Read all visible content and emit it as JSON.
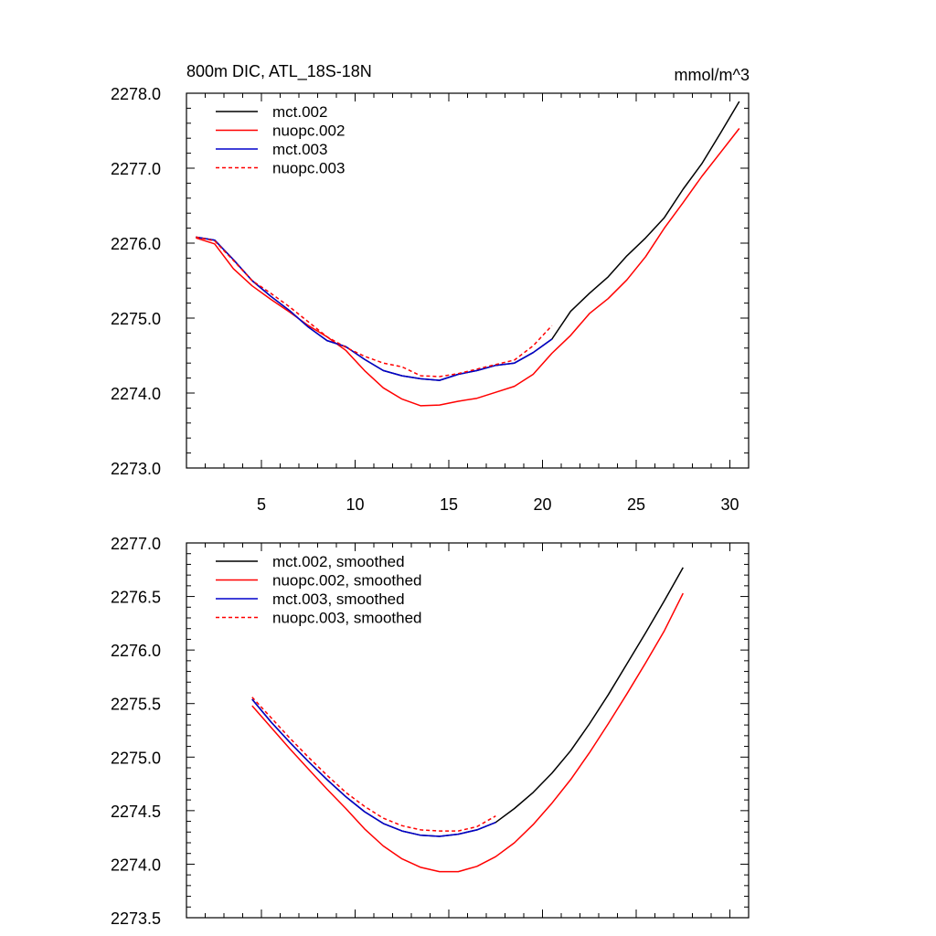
{
  "chart_data": [
    {
      "type": "line",
      "title": "800m DIC, ATL_18S-18N",
      "units": "mmol/m^3",
      "xlim": [
        1,
        31
      ],
      "ylim": [
        2273.0,
        2278.0
      ],
      "xticks": [
        5,
        10,
        15,
        20,
        25,
        30
      ],
      "yticks": [
        2273.0,
        2274.0,
        2275.0,
        2276.0,
        2277.0,
        2278.0
      ],
      "ytick_labels": [
        "2273.0",
        "2274.0",
        "2275.0",
        "2276.0",
        "2277.0",
        "2278.0"
      ],
      "legend_position": "top-left",
      "series": [
        {
          "name": "mct.002",
          "color": "#000000",
          "dash": "solid",
          "x": [
            1.5,
            2.5,
            3.5,
            4.5,
            5.5,
            6.5,
            7.5,
            8.5,
            9.5,
            10.5,
            11.5,
            12.5,
            13.5,
            14.5,
            15.5,
            16.5,
            17.5,
            18.5,
            19.5,
            20.5,
            21.5,
            22.5,
            23.5,
            24.5,
            25.5,
            26.5,
            27.5,
            28.5,
            29.5,
            30.5
          ],
          "y": [
            2276.08,
            2276.04,
            2275.78,
            2275.5,
            2275.29,
            2275.1,
            2274.88,
            2274.7,
            2274.62,
            2274.45,
            2274.3,
            2274.23,
            2274.19,
            2274.17,
            2274.25,
            2274.3,
            2274.37,
            2274.4,
            2274.54,
            2274.72,
            2275.09,
            2275.33,
            2275.55,
            2275.83,
            2276.07,
            2276.34,
            2276.72,
            2277.06,
            2277.47,
            2277.89
          ]
        },
        {
          "name": "nuopc.002",
          "color": "#ff0000",
          "dash": "solid",
          "x": [
            1.5,
            2.5,
            3.5,
            4.5,
            5.5,
            6.5,
            7.5,
            8.5,
            9.5,
            10.5,
            11.5,
            12.5,
            13.5,
            14.5,
            15.5,
            16.5,
            17.5,
            18.5,
            19.5,
            20.5,
            21.5,
            22.5,
            23.5,
            24.5,
            25.5,
            26.5,
            27.5,
            28.5,
            29.5,
            30.5
          ],
          "y": [
            2276.07,
            2275.99,
            2275.66,
            2275.43,
            2275.25,
            2275.08,
            2274.9,
            2274.75,
            2274.57,
            2274.3,
            2274.07,
            2273.92,
            2273.83,
            2273.84,
            2273.89,
            2273.93,
            2274.01,
            2274.09,
            2274.25,
            2274.53,
            2274.77,
            2275.06,
            2275.26,
            2275.51,
            2275.82,
            2276.2,
            2276.54,
            2276.89,
            2277.21,
            2277.53
          ]
        },
        {
          "name": "mct.003",
          "color": "#0000cc",
          "dash": "solid",
          "x": [
            1.5,
            2.5,
            3.5,
            4.5,
            5.5,
            6.5,
            7.5,
            8.5,
            9.5,
            10.5,
            11.5,
            12.5,
            13.5,
            14.5,
            15.5,
            16.5,
            17.5,
            18.5,
            19.5,
            20.5
          ],
          "y": [
            2276.08,
            2276.04,
            2275.78,
            2275.5,
            2275.29,
            2275.1,
            2274.88,
            2274.7,
            2274.62,
            2274.45,
            2274.3,
            2274.23,
            2274.19,
            2274.17,
            2274.25,
            2274.3,
            2274.37,
            2274.4,
            2274.54,
            2274.72
          ]
        },
        {
          "name": "nuopc.003",
          "color": "#ff0000",
          "dash": "dashed",
          "x": [
            1.5,
            2.5,
            3.5,
            4.5,
            5.5,
            6.5,
            7.5,
            8.5,
            9.5,
            10.5,
            11.5,
            12.5,
            13.5,
            14.5,
            15.5,
            16.5,
            17.5,
            18.5,
            19.5,
            20.5
          ],
          "y": [
            2276.08,
            2276.03,
            2275.77,
            2275.5,
            2275.33,
            2275.15,
            2274.95,
            2274.75,
            2274.61,
            2274.49,
            2274.4,
            2274.35,
            2274.23,
            2274.22,
            2274.26,
            2274.32,
            2274.38,
            2274.44,
            2274.63,
            2274.9
          ]
        }
      ]
    },
    {
      "type": "line",
      "xlim": [
        1,
        31
      ],
      "ylim": [
        2273.5,
        2277.0
      ],
      "xticks": [
        5,
        10,
        15,
        20,
        25,
        30
      ],
      "yticks": [
        2273.5,
        2274.0,
        2274.5,
        2275.0,
        2275.5,
        2276.0,
        2276.5,
        2277.0
      ],
      "ytick_labels": [
        "2273.5",
        "2274.0",
        "2274.5",
        "2275.0",
        "2275.5",
        "2276.0",
        "2276.5",
        "2277.0"
      ],
      "legend_position": "top-left",
      "series": [
        {
          "name": "mct.002, smoothed",
          "color": "#000000",
          "dash": "solid",
          "x": [
            4.5,
            5.5,
            6.5,
            7.5,
            8.5,
            9.5,
            10.5,
            11.5,
            12.5,
            13.5,
            14.5,
            15.5,
            16.5,
            17.5,
            18.5,
            19.5,
            20.5,
            21.5,
            22.5,
            23.5,
            24.5,
            25.5,
            26.5,
            27.5
          ],
          "y": [
            2275.54,
            2275.33,
            2275.14,
            2274.96,
            2274.79,
            2274.63,
            2274.49,
            2274.38,
            2274.31,
            2274.27,
            2274.26,
            2274.28,
            2274.32,
            2274.39,
            2274.52,
            2274.67,
            2274.85,
            2275.06,
            2275.31,
            2275.58,
            2275.87,
            2276.16,
            2276.46,
            2276.77
          ]
        },
        {
          "name": "nuopc.002, smoothed",
          "color": "#ff0000",
          "dash": "solid",
          "x": [
            4.5,
            5.5,
            6.5,
            7.5,
            8.5,
            9.5,
            10.5,
            11.5,
            12.5,
            13.5,
            14.5,
            15.5,
            16.5,
            17.5,
            18.5,
            19.5,
            20.5,
            21.5,
            22.5,
            23.5,
            24.5,
            25.5,
            26.5,
            27.5
          ],
          "y": [
            2275.48,
            2275.28,
            2275.08,
            2274.89,
            2274.7,
            2274.52,
            2274.33,
            2274.17,
            2274.05,
            2273.97,
            2273.93,
            2273.93,
            2273.98,
            2274.07,
            2274.2,
            2274.37,
            2274.57,
            2274.79,
            2275.04,
            2275.31,
            2275.59,
            2275.88,
            2276.18,
            2276.53
          ]
        },
        {
          "name": "mct.003, smoothed",
          "color": "#0000cc",
          "dash": "solid",
          "x": [
            4.5,
            5.5,
            6.5,
            7.5,
            8.5,
            9.5,
            10.5,
            11.5,
            12.5,
            13.5,
            14.5,
            15.5,
            16.5,
            17.5
          ],
          "y": [
            2275.54,
            2275.33,
            2275.14,
            2274.96,
            2274.79,
            2274.63,
            2274.49,
            2274.38,
            2274.31,
            2274.27,
            2274.26,
            2274.28,
            2274.32,
            2274.39
          ]
        },
        {
          "name": "nuopc.003, smoothed",
          "color": "#ff0000",
          "dash": "dashed",
          "x": [
            4.5,
            5.5,
            6.5,
            7.5,
            8.5,
            9.5,
            10.5,
            11.5,
            12.5,
            13.5,
            14.5,
            15.5,
            16.5,
            17.5
          ],
          "y": [
            2275.56,
            2275.37,
            2275.18,
            2275.0,
            2274.83,
            2274.67,
            2274.54,
            2274.43,
            2274.36,
            2274.32,
            2274.31,
            2274.31,
            2274.35,
            2274.45
          ]
        }
      ]
    }
  ]
}
